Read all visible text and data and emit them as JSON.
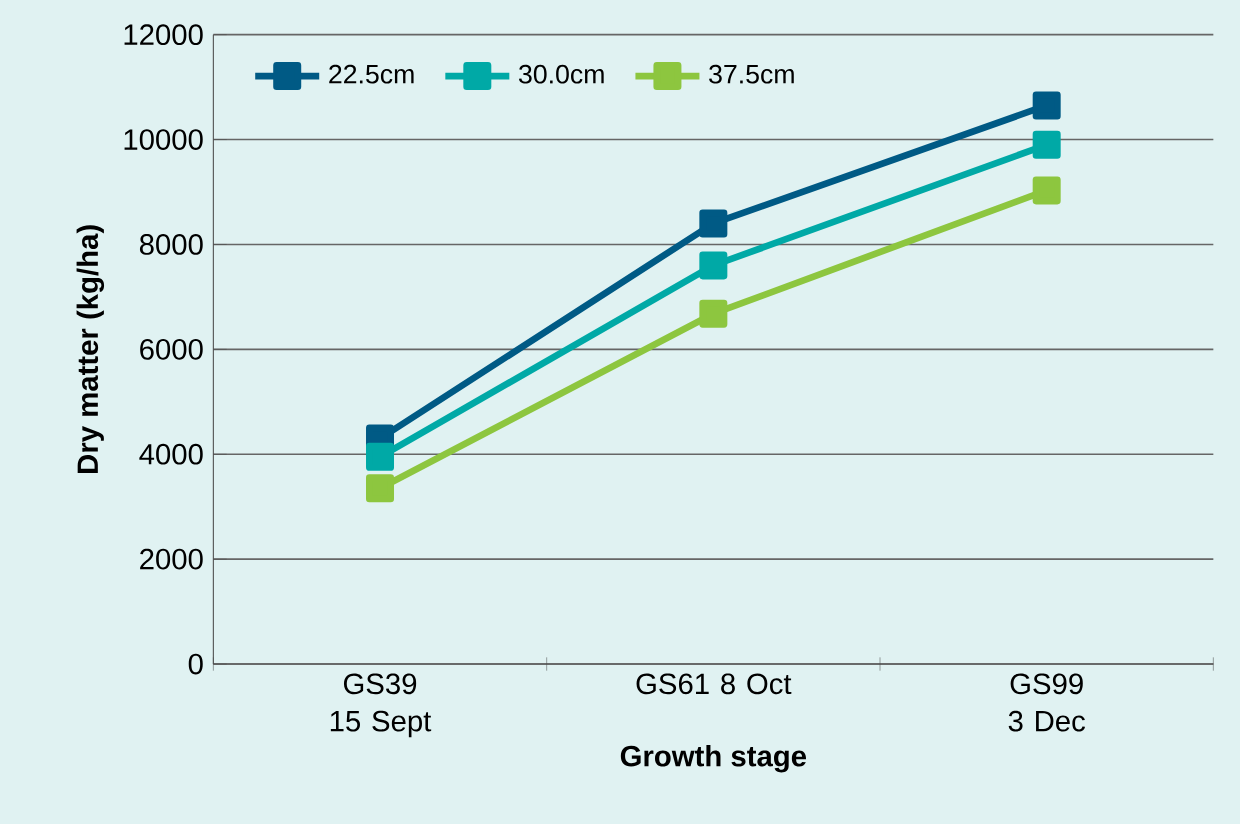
{
  "chart_data": {
    "type": "line",
    "xlabel": "Growth stage",
    "ylabel": "Dry matter (kg/ha)",
    "categories": [
      "GS39 15 Sept",
      "GS61 8 Oct",
      "GS99 3 Dec"
    ],
    "series": [
      {
        "name": "22.5cm",
        "color": "#005a85",
        "values": [
          4300,
          8400,
          10650
        ]
      },
      {
        "name": "30.0cm",
        "color": "#00a9a6",
        "values": [
          3950,
          7600,
          9900
        ]
      },
      {
        "name": "37.5cm",
        "color": "#8dc63f",
        "values": [
          3350,
          6680,
          9030
        ]
      }
    ],
    "ylim": [
      0,
      12000
    ],
    "yticks": [
      0,
      2000,
      4000,
      6000,
      8000,
      10000,
      12000
    ],
    "grid": "y",
    "legend": "top left",
    "marker": "square",
    "line_style": "solid"
  }
}
